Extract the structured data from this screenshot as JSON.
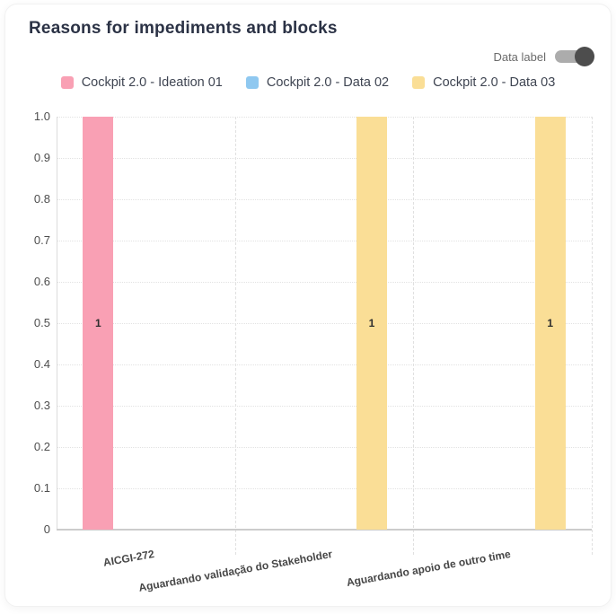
{
  "card": {
    "title": "Reasons for impediments and blocks",
    "toggle": {
      "label": "Data label",
      "state": "on"
    }
  },
  "chart_data": {
    "type": "bar",
    "title": "Reasons for impediments and blocks",
    "categories": [
      "AICGI-272",
      "Aguardando validação do Stakeholder",
      "Aguardando apoio de outro time"
    ],
    "series": [
      {
        "name": "Cockpit 2.0 - Ideation 01",
        "color": "#F9A0B4",
        "values": [
          1,
          null,
          null
        ]
      },
      {
        "name": "Cockpit 2.0 - Data 02",
        "color": "#8FC8F0",
        "values": [
          null,
          null,
          null
        ]
      },
      {
        "name": "Cockpit 2.0 - Data 03",
        "color": "#FADE96",
        "values": [
          null,
          1,
          1
        ]
      }
    ],
    "ylim": [
      0,
      1
    ],
    "y_ticks": [
      "1.0",
      "0.9",
      "0.8",
      "0.7",
      "0.6",
      "0.5",
      "0.4",
      "0.3",
      "0.2",
      "0.1",
      "0"
    ],
    "data_labels_shown": true,
    "data_labels": [
      {
        "category": "AICGI-272",
        "series": "Cockpit 2.0 - Ideation 01",
        "value": 1
      },
      {
        "category": "Aguardando validação do Stakeholder",
        "series": "Cockpit 2.0 - Data 03",
        "value": 1
      },
      {
        "category": "Aguardando apoio de outro time",
        "series": "Cockpit 2.0 - Data 03",
        "value": 1
      }
    ],
    "legend_position": "top",
    "grid": {
      "horizontal": "dotted",
      "vertical_separators": "dashed"
    }
  },
  "colors": {
    "title_text": "#2B3245",
    "legend_text": "#3F4552",
    "axis_tick_text": "#4D4D4D",
    "x_label_text": "#474747",
    "bar_label_text": "#2E2E2E",
    "grid_dotted": "#E2E2E2",
    "axis_line": "#CCCCCC",
    "toggle_track": "#ACACAC",
    "toggle_knob": "#4D4D4D",
    "series_pink": "#F9A0B4",
    "series_blue": "#8FC8F0",
    "series_yellow": "#FADE96"
  }
}
